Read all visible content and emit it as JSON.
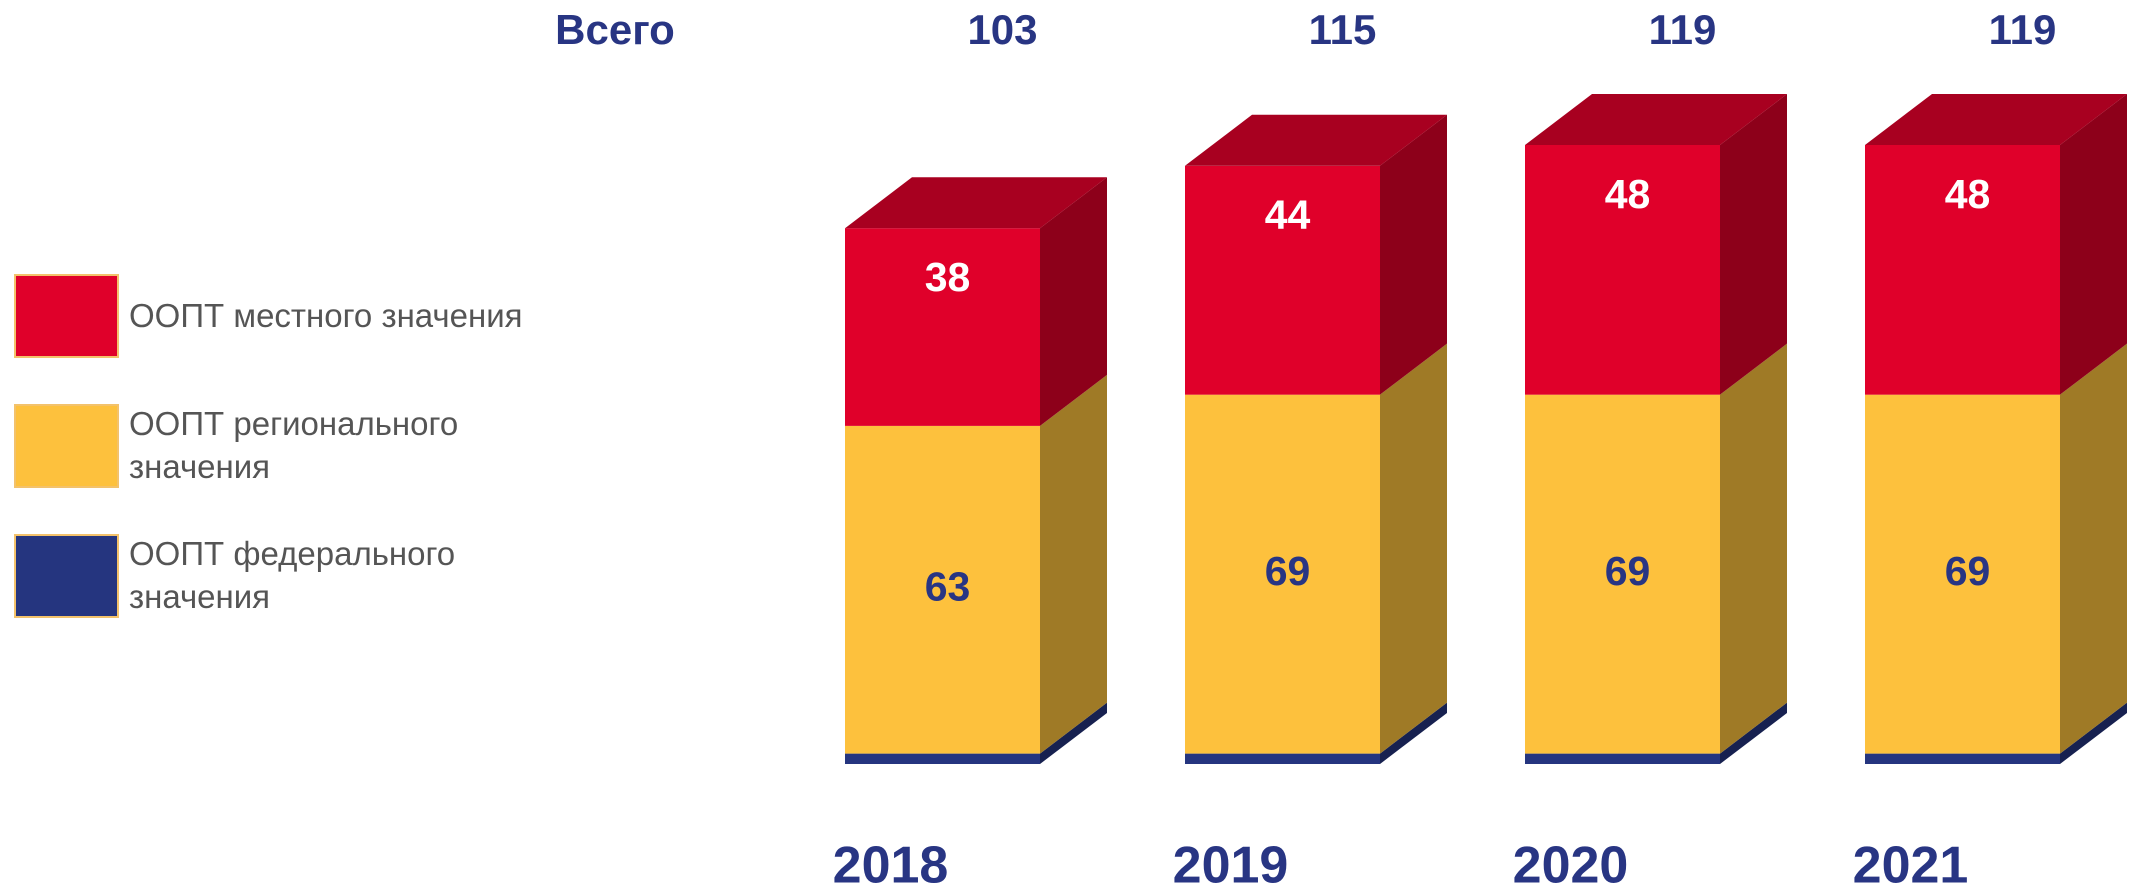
{
  "chart_data": {
    "type": "bar",
    "stacked": true,
    "categories": [
      "2018",
      "2019",
      "2020",
      "2021"
    ],
    "series": [
      {
        "name": "ООПТ федерального значения",
        "color": "#25357f",
        "values": [
          2,
          2,
          2,
          2
        ]
      },
      {
        "name": "ООПТ регионального значения",
        "color": "#fdc13d",
        "values": [
          63,
          69,
          69,
          69
        ]
      },
      {
        "name": "ООПТ местного значения",
        "color": "#e0002a",
        "values": [
          38,
          44,
          48,
          48
        ]
      }
    ],
    "totals_label": "Всего",
    "totals": [
      103,
      115,
      119,
      119
    ]
  }
}
